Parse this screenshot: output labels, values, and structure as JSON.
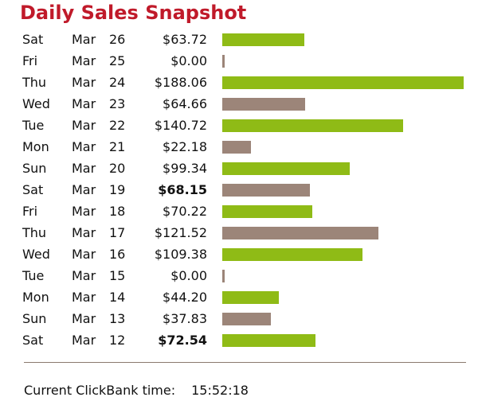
{
  "title": "Daily Sales Snapshot",
  "footer": {
    "label": "Current ClickBank time:",
    "time": "15:52:18"
  },
  "colors": {
    "title": "#c01a2a",
    "bar_green": "#8fbb16",
    "bar_brown": "#9c8579",
    "divider": "#8a7a6e"
  },
  "chart_data": {
    "type": "bar",
    "orientation": "horizontal",
    "xlim": [
      0,
      188.06
    ],
    "rows": [
      {
        "day": "Sat",
        "month": "Mar",
        "date": "26",
        "amount": "$63.72",
        "value": 63.72,
        "bold": false,
        "color": "green"
      },
      {
        "day": "Fri",
        "month": "Mar",
        "date": "25",
        "amount": "$0.00",
        "value": 0.0,
        "bold": false,
        "color": "brown"
      },
      {
        "day": "Thu",
        "month": "Mar",
        "date": "24",
        "amount": "$188.06",
        "value": 188.06,
        "bold": false,
        "color": "green"
      },
      {
        "day": "Wed",
        "month": "Mar",
        "date": "23",
        "amount": "$64.66",
        "value": 64.66,
        "bold": false,
        "color": "brown"
      },
      {
        "day": "Tue",
        "month": "Mar",
        "date": "22",
        "amount": "$140.72",
        "value": 140.72,
        "bold": false,
        "color": "green"
      },
      {
        "day": "Mon",
        "month": "Mar",
        "date": "21",
        "amount": "$22.18",
        "value": 22.18,
        "bold": false,
        "color": "brown"
      },
      {
        "day": "Sun",
        "month": "Mar",
        "date": "20",
        "amount": "$99.34",
        "value": 99.34,
        "bold": false,
        "color": "green"
      },
      {
        "day": "Sat",
        "month": "Mar",
        "date": "19",
        "amount": "$68.15",
        "value": 68.15,
        "bold": true,
        "color": "brown"
      },
      {
        "day": "Fri",
        "month": "Mar",
        "date": "18",
        "amount": "$70.22",
        "value": 70.22,
        "bold": false,
        "color": "green"
      },
      {
        "day": "Thu",
        "month": "Mar",
        "date": "17",
        "amount": "$121.52",
        "value": 121.52,
        "bold": false,
        "color": "brown"
      },
      {
        "day": "Wed",
        "month": "Mar",
        "date": "16",
        "amount": "$109.38",
        "value": 109.38,
        "bold": false,
        "color": "green"
      },
      {
        "day": "Tue",
        "month": "Mar",
        "date": "15",
        "amount": "$0.00",
        "value": 0.0,
        "bold": false,
        "color": "brown"
      },
      {
        "day": "Mon",
        "month": "Mar",
        "date": "14",
        "amount": "$44.20",
        "value": 44.2,
        "bold": false,
        "color": "green"
      },
      {
        "day": "Sun",
        "month": "Mar",
        "date": "13",
        "amount": "$37.83",
        "value": 37.83,
        "bold": false,
        "color": "brown"
      },
      {
        "day": "Sat",
        "month": "Mar",
        "date": "12",
        "amount": "$72.54",
        "value": 72.54,
        "bold": true,
        "color": "green"
      }
    ]
  }
}
